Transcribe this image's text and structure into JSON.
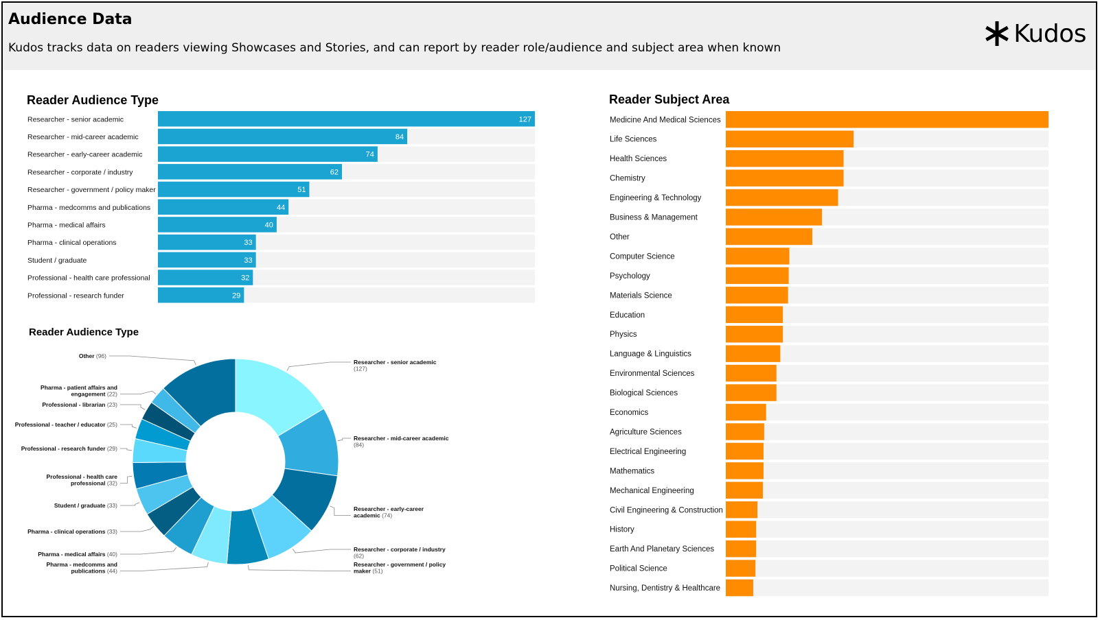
{
  "header": {
    "title": "Audience Data",
    "subtitle": "Kudos tracks data on readers viewing Showcases and Stories, and can report by reader role/audience and subject area when known",
    "logo_text": "Kudos",
    "logo_icon": "asterisk-icon"
  },
  "colors": {
    "header_bg": "#efefef",
    "bar_blue": "#1ba3d1",
    "bar_orange": "#ff8c00",
    "track": "#f3f3f3"
  },
  "chart_data": [
    {
      "id": "audience_bar",
      "type": "bar",
      "orientation": "horizontal",
      "title": "Reader Audience Type",
      "categories": [
        "Researcher - senior academic",
        "Researcher - mid-career academic",
        "Researcher - early-career academic",
        "Researcher - corporate / industry",
        "Researcher - government / policy maker",
        "Pharma - medcomms and publications",
        "Pharma - medical affairs",
        "Pharma - clinical operations",
        "Student / graduate",
        "Professional - health care professional",
        "Professional - research funder"
      ],
      "values": [
        127,
        84,
        74,
        62,
        51,
        44,
        40,
        33,
        33,
        32,
        29
      ],
      "xlim": [
        0,
        127
      ],
      "data_labels": true
    },
    {
      "id": "audience_donut",
      "type": "pie",
      "title": "Reader Audience Type",
      "slices": [
        {
          "name": "Researcher - senior academic",
          "value": 127,
          "color": "#88f5ff"
        },
        {
          "name": "Researcher - mid-career academic",
          "value": 84,
          "color": "#30acde"
        },
        {
          "name": "Researcher - early-career academic",
          "value": 74,
          "color": "#026f9e"
        },
        {
          "name": "Researcher - corporate / industry",
          "value": 62,
          "color": "#5dd2fa"
        },
        {
          "name": "Researcher - government / policy maker",
          "value": 51,
          "color": "#0388b8"
        },
        {
          "name": "Pharma - medcomms and publications",
          "value": 44,
          "color": "#7fe9fd"
        },
        {
          "name": "Pharma - medical affairs",
          "value": 40,
          "color": "#1e9fd0"
        },
        {
          "name": "Pharma - clinical operations",
          "value": 33,
          "color": "#045e84"
        },
        {
          "name": "Student / graduate",
          "value": 33,
          "color": "#4dc3ef"
        },
        {
          "name": "Professional - health care professional",
          "value": 32,
          "color": "#037ab1"
        },
        {
          "name": "Professional - research funder",
          "value": 29,
          "color": "#5ad9fc"
        },
        {
          "name": "Professional - teacher / educator",
          "value": 25,
          "color": "#029bd1"
        },
        {
          "name": "Professional - librarian",
          "value": 23,
          "color": "#025276"
        },
        {
          "name": "Pharma - patient affairs and engagement",
          "value": 22,
          "color": "#40b8e8"
        },
        {
          "name": "Other",
          "value": 96,
          "color": "#026f9e"
        }
      ]
    },
    {
      "id": "subject_bar",
      "type": "bar",
      "orientation": "horizontal",
      "title": "Reader Subject Area",
      "categories": [
        "Medicine And Medical Sciences",
        "Life Sciences",
        "Health Sciences",
        "Chemistry",
        "Engineering & Technology",
        "Business & Management",
        "Other",
        "Computer Science",
        "Psychology",
        "Materials Science",
        "Education",
        "Physics",
        "Language & Linguistics",
        "Environmental Sciences",
        "Biological Sciences",
        "Economics",
        "Agriculture Sciences",
        "Electrical Engineering",
        "Mathematics",
        "Mechanical Engineering",
        "Civil Engineering & Construction",
        "History",
        "Earth And Planetary Sciences",
        "Political Science",
        "Nursing, Dentistry & Healthcare"
      ],
      "values": [
        100,
        39.6,
        36.5,
        36.5,
        34.8,
        29.8,
        26.8,
        19.7,
        19.5,
        19.3,
        17.7,
        17.7,
        16.9,
        15.7,
        15.7,
        12.5,
        11.9,
        11.7,
        11.7,
        11.5,
        9.8,
        9.4,
        9.4,
        9.2,
        8.5
      ],
      "xlim": [
        0,
        100
      ],
      "data_labels": false
    }
  ]
}
